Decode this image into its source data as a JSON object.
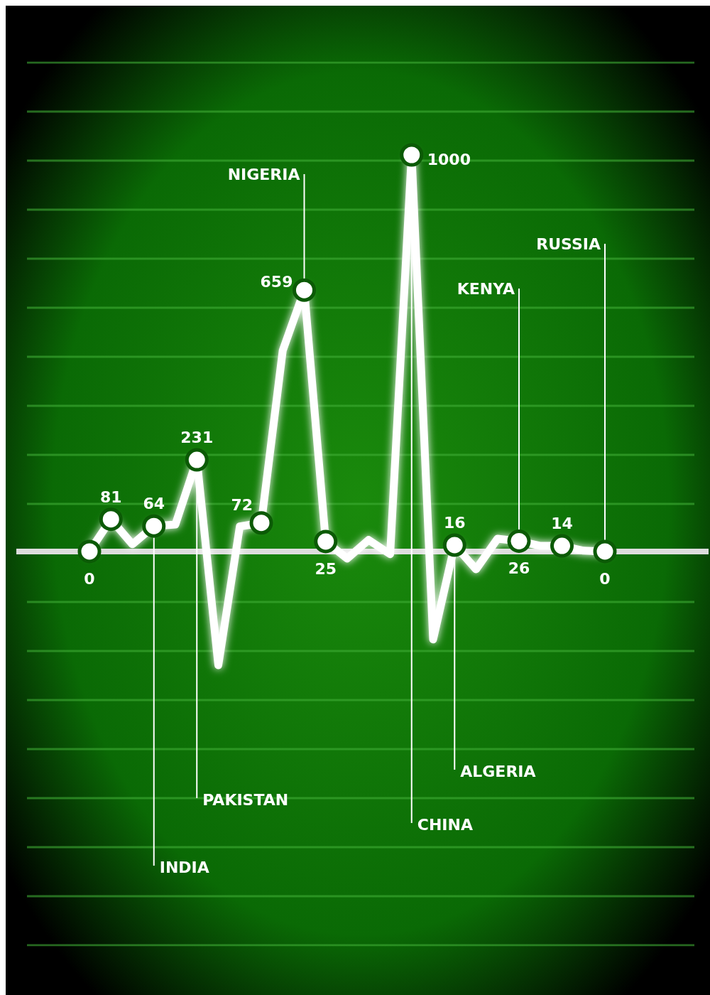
{
  "chart_data": {
    "type": "line",
    "categories": [
      null,
      null,
      null,
      null,
      null,
      null,
      null,
      null,
      null,
      null,
      null,
      null,
      null,
      null,
      null,
      null,
      null,
      null,
      null,
      null,
      null,
      null,
      null,
      null,
      null
    ],
    "values": [
      0,
      81,
      18,
      64,
      68,
      231,
      -287,
      63,
      72,
      507,
      659,
      25,
      -18,
      29,
      -7,
      1000,
      -222,
      16,
      -45,
      32,
      26,
      14,
      14,
      2,
      0
    ],
    "value_labels": [
      "0",
      "81",
      null,
      "64",
      null,
      "231",
      null,
      null,
      "72",
      null,
      "659",
      "25",
      null,
      null,
      null,
      "1000",
      null,
      "16",
      null,
      null,
      "26",
      null,
      "14",
      null,
      "0"
    ],
    "annotations": [
      "INDIA",
      "PAKISTAN",
      "NIGERIA",
      "CHINA",
      "ALGERIA",
      "KENYA",
      "RUSSIA"
    ],
    "color": "#ffffff"
  }
}
